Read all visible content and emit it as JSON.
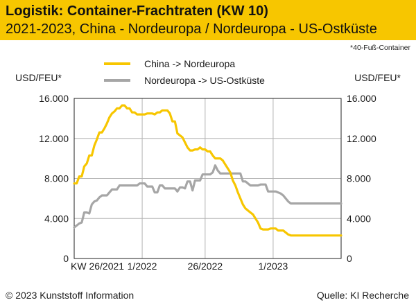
{
  "header": {
    "title": "Logistik: Container-Frachtraten (KW 10)",
    "subtitle": "2021-2023, China - Nordeuropa / Nordeuropa - US-Ostküste",
    "background_color": "#f7c600"
  },
  "footnote": "*40-Fuß-Container",
  "footer": {
    "copyright": "© 2023 Kunststoff Information",
    "source": "Quelle: KI Recherche"
  },
  "chart_data": {
    "type": "line",
    "ylabel_left": "USD/FEU*",
    "ylabel_right": "USD/FEU*",
    "ylim": [
      0,
      16000
    ],
    "yticks": [
      0,
      4000,
      8000,
      12000,
      16000
    ],
    "ytick_labels": [
      "0",
      "4.000",
      "8.000",
      "12.000",
      "16.000"
    ],
    "xlim": [
      0,
      106
    ],
    "xticks": [
      {
        "x": 0,
        "label": "KW 26/2021"
      },
      {
        "x": 27,
        "label": "1/2022"
      },
      {
        "x": 52,
        "label": "26/2022"
      },
      {
        "x": 79,
        "label": "1/2023"
      }
    ],
    "grid": true,
    "legend_position": "top",
    "series": [
      {
        "name": "China -> Nordeuropa",
        "color": "#f7c600",
        "x": [
          0,
          1,
          2,
          3,
          4,
          5,
          6,
          7,
          8,
          9,
          10,
          11,
          12,
          13,
          14,
          15,
          16,
          17,
          18,
          19,
          20,
          21,
          22,
          23,
          24,
          25,
          26,
          27,
          28,
          29,
          30,
          31,
          32,
          33,
          34,
          35,
          36,
          37,
          38,
          39,
          40,
          41,
          42,
          43,
          44,
          45,
          46,
          47,
          48,
          49,
          50,
          51,
          52,
          53,
          54,
          55,
          56,
          57,
          58,
          59,
          60,
          61,
          62,
          63,
          64,
          65,
          66,
          67,
          68,
          69,
          70,
          71,
          72,
          73,
          74,
          75,
          76,
          77,
          78,
          79,
          80,
          81,
          82,
          83,
          84,
          85,
          86,
          87,
          88,
          89,
          90,
          91,
          92,
          93,
          94,
          95,
          96,
          97,
          98,
          99,
          100,
          101,
          102,
          103,
          104,
          105,
          106
        ],
        "values": [
          7500,
          7500,
          8200,
          8200,
          9200,
          9500,
          10300,
          10300,
          11300,
          11900,
          12600,
          12600,
          13000,
          13500,
          14100,
          14500,
          14700,
          15000,
          15000,
          15300,
          15300,
          15000,
          15000,
          14600,
          14600,
          14400,
          14400,
          14400,
          14400,
          14500,
          14500,
          14500,
          14400,
          14600,
          14600,
          14800,
          14800,
          14800,
          14500,
          13700,
          13700,
          12500,
          12300,
          12100,
          11600,
          11100,
          10800,
          10800,
          10900,
          10900,
          11100,
          10900,
          10900,
          10700,
          10700,
          10300,
          10000,
          10000,
          10000,
          9800,
          9400,
          9000,
          8600,
          7800,
          7300,
          6600,
          6000,
          5400,
          5000,
          4800,
          4600,
          4400,
          4000,
          3600,
          3000,
          2900,
          2900,
          2900,
          3000,
          3000,
          3000,
          2800,
          2800,
          2800,
          2600,
          2400,
          2300,
          2300,
          2300,
          2300,
          2300,
          2300,
          2300,
          2300,
          2300,
          2300,
          2300,
          2300,
          2300,
          2300,
          2300,
          2300,
          2300,
          2300,
          2300,
          2300,
          2300
        ]
      },
      {
        "name": "Nordeuropa -> US-Ostküste",
        "color": "#a6a6a6",
        "x": [
          0,
          1,
          2,
          3,
          4,
          5,
          6,
          7,
          8,
          9,
          10,
          11,
          12,
          13,
          14,
          15,
          16,
          17,
          18,
          19,
          20,
          21,
          22,
          23,
          24,
          25,
          26,
          27,
          28,
          29,
          30,
          31,
          32,
          33,
          34,
          35,
          36,
          37,
          38,
          39,
          40,
          41,
          42,
          43,
          44,
          45,
          46,
          47,
          48,
          49,
          50,
          51,
          52,
          53,
          54,
          55,
          56,
          57,
          58,
          59,
          60,
          61,
          62,
          63,
          64,
          65,
          66,
          67,
          68,
          69,
          70,
          71,
          72,
          73,
          74,
          75,
          76,
          77,
          78,
          79,
          80,
          81,
          82,
          83,
          84,
          85,
          86,
          87,
          88,
          89,
          90,
          91,
          92,
          93,
          94,
          95,
          96,
          97,
          98,
          99,
          100,
          101,
          102,
          103,
          104,
          105,
          106
        ],
        "values": [
          3100,
          3300,
          3500,
          3600,
          4600,
          4600,
          4500,
          5400,
          5700,
          5800,
          6100,
          6300,
          6300,
          6300,
          6600,
          6900,
          6900,
          6900,
          7300,
          7300,
          7300,
          7300,
          7300,
          7300,
          7300,
          7300,
          7500,
          7500,
          7500,
          7200,
          7200,
          7200,
          6600,
          6600,
          7300,
          7300,
          7000,
          7000,
          7000,
          7000,
          7000,
          6700,
          7100,
          7100,
          7000,
          7700,
          7700,
          6800,
          7800,
          7800,
          7800,
          8400,
          8400,
          8400,
          8400,
          8600,
          9300,
          8800,
          8500,
          8500,
          8500,
          8500,
          8500,
          8500,
          8500,
          8500,
          8500,
          7700,
          7700,
          7500,
          7300,
          7300,
          7300,
          7300,
          7400,
          7400,
          7400,
          6700,
          6700,
          6700,
          6700,
          6600,
          6500,
          6300,
          6000,
          5700,
          5500,
          5500,
          5500,
          5500,
          5500,
          5500,
          5500,
          5500,
          5500,
          5500,
          5500,
          5500,
          5500,
          5500,
          5500,
          5500,
          5500,
          5500,
          5500,
          5500,
          5500
        ]
      }
    ]
  }
}
